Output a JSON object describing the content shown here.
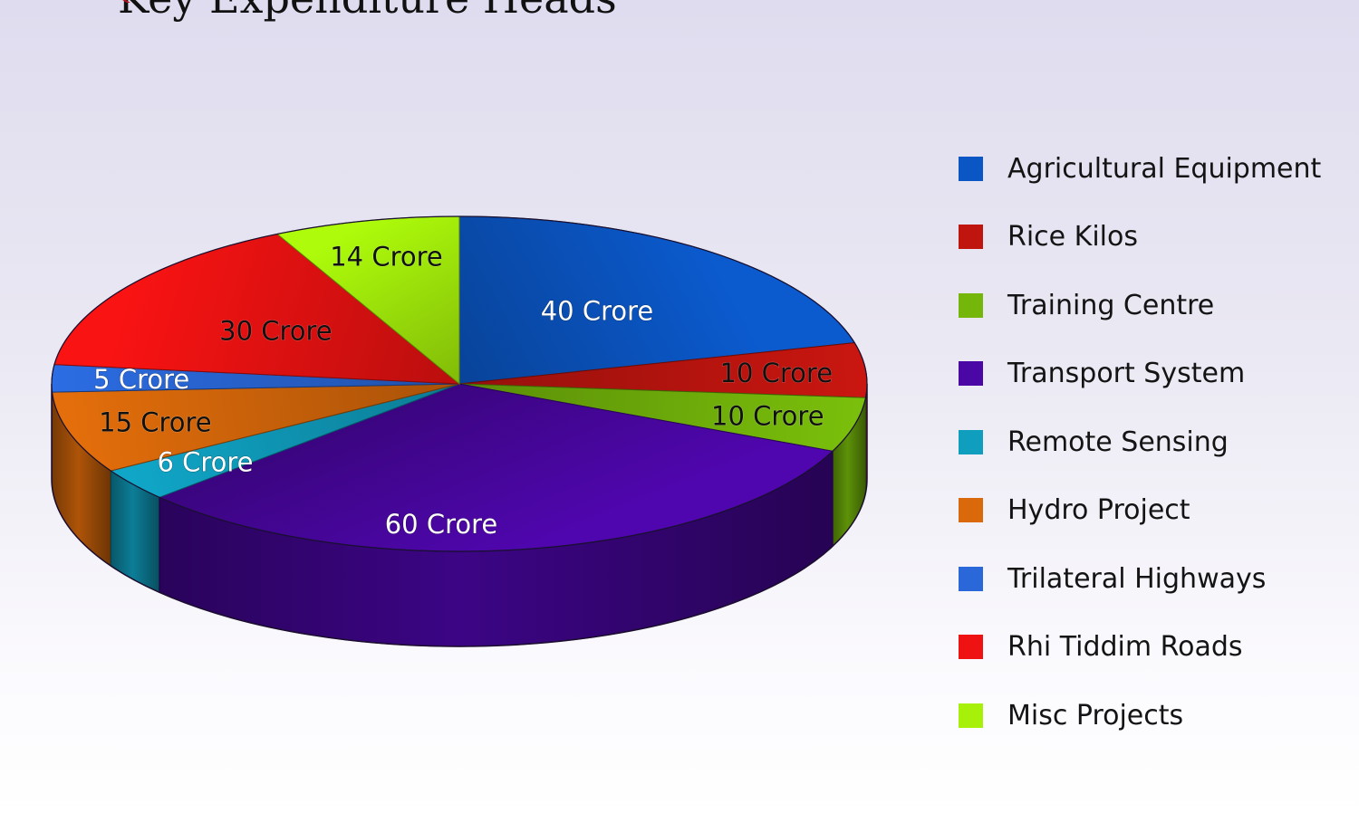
{
  "page": {
    "title": "Key Expenditure Heads"
  },
  "chart_data": {
    "type": "pie",
    "style": "3d",
    "title": "Key Expenditure Heads",
    "slices": [
      {
        "name": "Agricultural Equipment",
        "value": 40,
        "label": "40 Crore",
        "color": "#0a56c4",
        "label_color": "#ffffff"
      },
      {
        "name": "Rice Kilos",
        "value": 10,
        "label": "10 Crore",
        "color": "#c0150f",
        "label_color": "#111111"
      },
      {
        "name": "Training Centre",
        "value": 10,
        "label": "10 Crore",
        "color": "#74b60a",
        "label_color": "#111111"
      },
      {
        "name": "Transport System",
        "value": 60,
        "label": "60 Crore",
        "color": "#4b06a6",
        "label_color": "#ffffff"
      },
      {
        "name": "Remote Sensing",
        "value": 6,
        "label": "6 Crore",
        "color": "#0f9ebe",
        "label_color": "#ffffff"
      },
      {
        "name": "Hydro Project",
        "value": 15,
        "label": "15 Crore",
        "color": "#d9690a",
        "label_color": "#111111"
      },
      {
        "name": "Trilateral Highways",
        "value": 5,
        "label": "5 Crore",
        "color": "#2a68d9",
        "label_color": "#ffffff"
      },
      {
        "name": "Rhi Tiddim Roads",
        "value": 30,
        "label": "30 Crore",
        "color": "#ee1212",
        "label_color": "#111111"
      },
      {
        "name": "Misc Projects",
        "value": 14,
        "label": "14 Crore",
        "color": "#a6f00a",
        "label_color": "#111111"
      }
    ],
    "legend": {
      "placement": "right"
    }
  }
}
